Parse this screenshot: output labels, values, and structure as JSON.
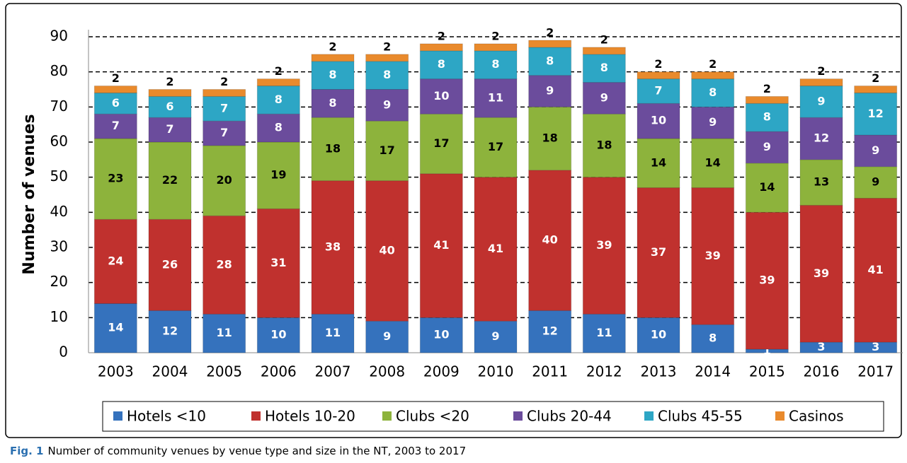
{
  "chart_data": {
    "type": "stacked_bar",
    "y_label": "Number of venues",
    "caption_label": "Fig. 1",
    "caption": "Number of community venues by venue type and size in the NT, 2003 to 2017",
    "categories": [
      "2003",
      "2004",
      "2005",
      "2006",
      "2007",
      "2008",
      "2009",
      "2010",
      "2011",
      "2012",
      "2013",
      "2014",
      "2015",
      "2016",
      "2017"
    ],
    "series": [
      {
        "name": "Hotels <10",
        "color": "#3572bd",
        "label_color": "#ffffff",
        "values": [
          14,
          12,
          11,
          10,
          11,
          9,
          10,
          9,
          12,
          11,
          10,
          8,
          1,
          3,
          3
        ]
      },
      {
        "name": "Hotels 10-20",
        "color": "#c0312e",
        "label_color": "#ffffff",
        "values": [
          24,
          26,
          28,
          31,
          38,
          40,
          41,
          41,
          40,
          39,
          37,
          39,
          39,
          39,
          41
        ]
      },
      {
        "name": "Clubs <20",
        "color": "#8db33c",
        "label_color": "#000000",
        "values": [
          23,
          22,
          20,
          19,
          18,
          17,
          17,
          17,
          18,
          18,
          14,
          14,
          14,
          13,
          9
        ]
      },
      {
        "name": "Clubs 20-44",
        "color": "#6b4c9c",
        "label_color": "#ffffff",
        "values": [
          7,
          7,
          7,
          8,
          8,
          9,
          10,
          11,
          9,
          9,
          10,
          9,
          9,
          12,
          9
        ]
      },
      {
        "name": "Clubs 45-55",
        "color": "#2da6c5",
        "label_color": "#ffffff",
        "values": [
          6,
          6,
          7,
          8,
          8,
          8,
          8,
          8,
          8,
          8,
          7,
          8,
          8,
          9,
          12
        ]
      },
      {
        "name": "Casinos",
        "color": "#e98a2c",
        "label_color": "#000000",
        "values": [
          2,
          2,
          2,
          2,
          2,
          2,
          2,
          2,
          2,
          2,
          2,
          2,
          2,
          2,
          2
        ]
      }
    ],
    "ylim": [
      0,
      90
    ],
    "yticks": [
      0,
      10,
      20,
      30,
      40,
      50,
      60,
      70,
      80,
      90
    ],
    "grid": true,
    "legend": "bottom"
  }
}
